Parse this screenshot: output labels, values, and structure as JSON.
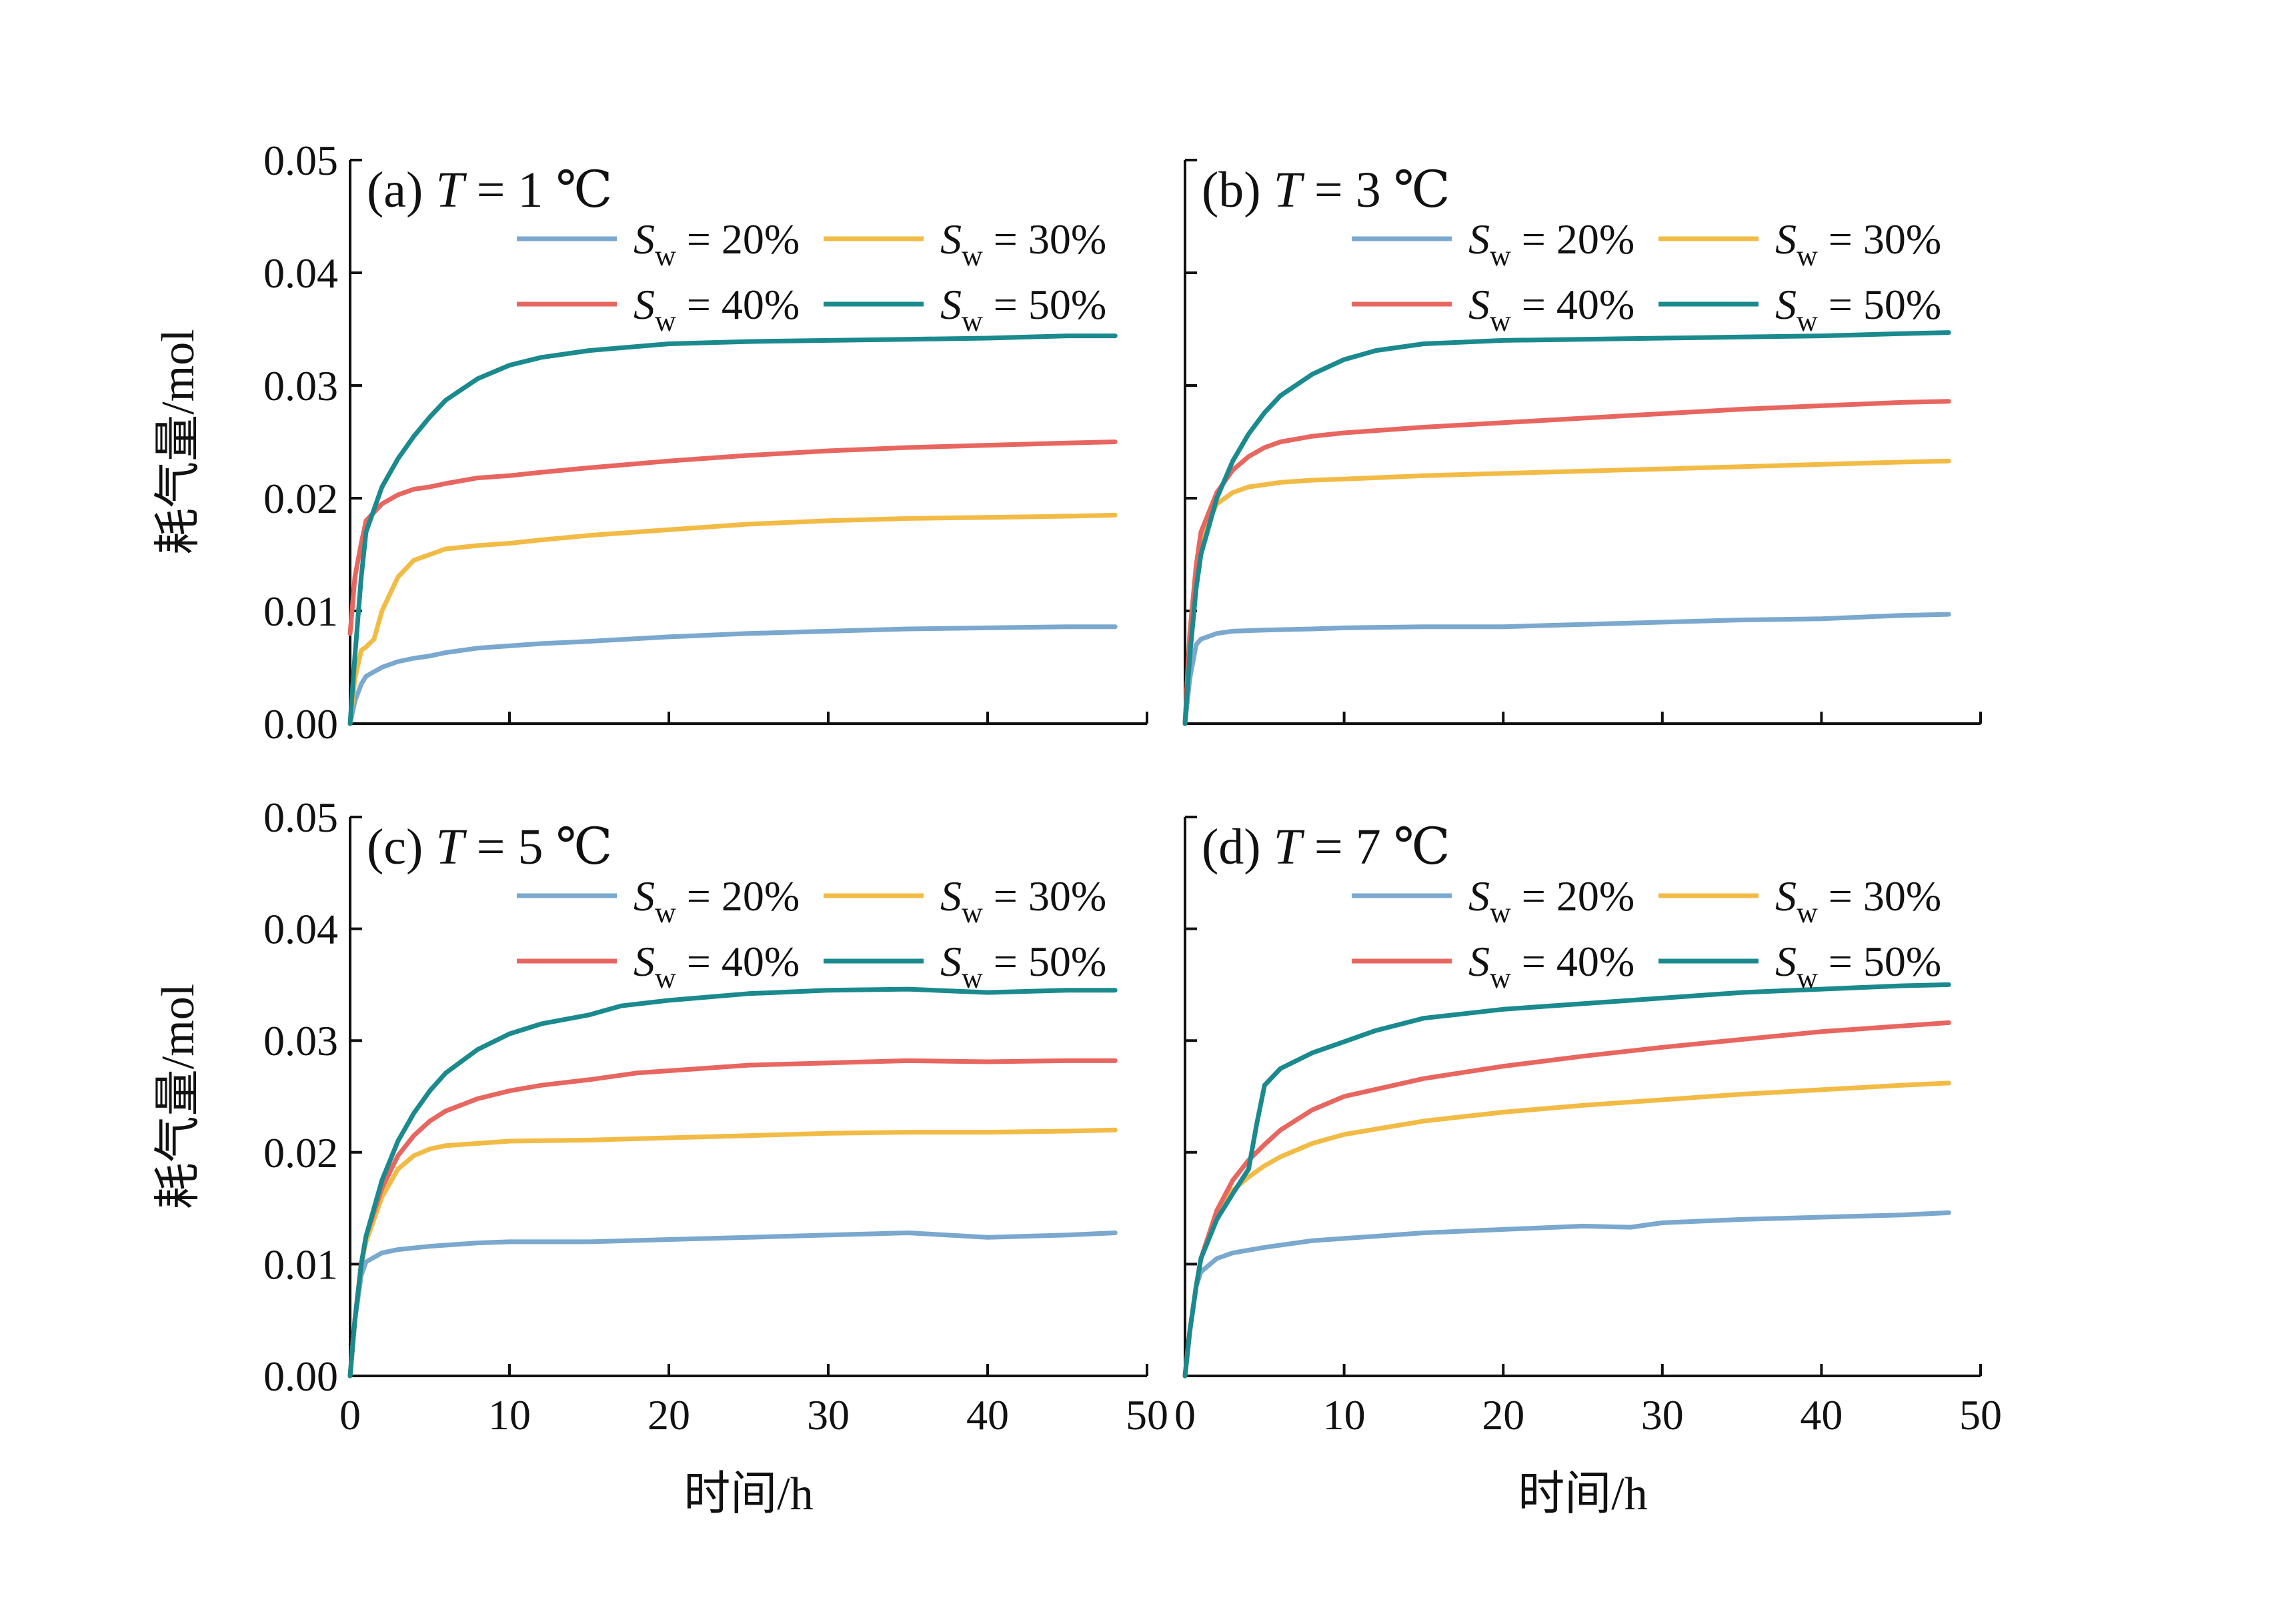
{
  "figure": {
    "ylabel": "耗气量/mol",
    "xlabel": "时间/h"
  },
  "chart_data": [
    {
      "type": "line",
      "panel": "(a)",
      "condition": "T = 1 ℃",
      "xlabel": "时间/h",
      "ylabel": "耗气量/mol",
      "xlim": [
        0,
        50
      ],
      "ylim": [
        0,
        0.05
      ],
      "xticks": [
        0,
        10,
        20,
        30,
        40,
        50
      ],
      "yticks": [
        0.0,
        0.01,
        0.02,
        0.03,
        0.04,
        0.05
      ],
      "legend": "top-right",
      "series": [
        {
          "name": "Sw = 20%",
          "color": "#7aa8ce",
          "x": [
            0,
            0.3,
            0.7,
            1,
            2,
            3,
            4,
            5,
            6,
            8,
            10,
            12,
            15,
            20,
            25,
            30,
            35,
            40,
            45,
            48
          ],
          "y": [
            0,
            0.002,
            0.0035,
            0.0042,
            0.005,
            0.0055,
            0.0058,
            0.006,
            0.0063,
            0.0067,
            0.0069,
            0.0071,
            0.0073,
            0.0077,
            0.008,
            0.0082,
            0.0084,
            0.0085,
            0.0086,
            0.0086
          ]
        },
        {
          "name": "Sw = 30%",
          "color": "#f2bb45",
          "x": [
            0,
            0.3,
            0.7,
            1,
            1.5,
            2,
            3,
            4,
            5,
            6,
            8,
            10,
            12,
            15,
            20,
            25,
            30,
            35,
            40,
            45,
            48
          ],
          "y": [
            0,
            0.004,
            0.0065,
            0.0068,
            0.0075,
            0.01,
            0.013,
            0.0145,
            0.015,
            0.0155,
            0.0158,
            0.016,
            0.0163,
            0.0167,
            0.0172,
            0.0177,
            0.018,
            0.0182,
            0.0183,
            0.0184,
            0.0185
          ]
        },
        {
          "name": "Sw = 40%",
          "color": "#e86660",
          "x": [
            0,
            0.3,
            0.7,
            1,
            2,
            3,
            4,
            5,
            6,
            8,
            10,
            12,
            15,
            20,
            25,
            30,
            35,
            40,
            45,
            48
          ],
          "y": [
            0.008,
            0.013,
            0.016,
            0.018,
            0.0195,
            0.0203,
            0.0208,
            0.021,
            0.0213,
            0.0218,
            0.022,
            0.0223,
            0.0227,
            0.0233,
            0.0238,
            0.0242,
            0.0245,
            0.0247,
            0.0249,
            0.025
          ]
        },
        {
          "name": "Sw = 50%",
          "color": "#1a8a8e",
          "x": [
            0,
            0.3,
            0.7,
            1,
            2,
            3,
            4,
            5,
            6,
            8,
            10,
            12,
            15,
            20,
            25,
            30,
            35,
            40,
            45,
            48
          ],
          "y": [
            0,
            0.006,
            0.013,
            0.017,
            0.021,
            0.0235,
            0.0255,
            0.0272,
            0.0287,
            0.0306,
            0.0318,
            0.0325,
            0.0331,
            0.0337,
            0.0339,
            0.034,
            0.0341,
            0.0342,
            0.0344,
            0.0344
          ]
        }
      ]
    },
    {
      "type": "line",
      "panel": "(b)",
      "condition": "T = 3 ℃",
      "xlabel": "时间/h",
      "ylabel": "耗气量/mol",
      "xlim": [
        0,
        50
      ],
      "ylim": [
        0,
        0.05
      ],
      "xticks": [
        0,
        10,
        20,
        30,
        40,
        50
      ],
      "yticks": [
        0.0,
        0.01,
        0.02,
        0.03,
        0.04,
        0.05
      ],
      "legend": "top-right",
      "series": [
        {
          "name": "Sw = 20%",
          "color": "#7aa8ce",
          "x": [
            0,
            0.3,
            0.7,
            1,
            2,
            3,
            5,
            8,
            10,
            15,
            20,
            25,
            30,
            35,
            40,
            45,
            48
          ],
          "y": [
            0,
            0.004,
            0.007,
            0.0075,
            0.008,
            0.0082,
            0.0083,
            0.0084,
            0.0085,
            0.0086,
            0.0086,
            0.0088,
            0.009,
            0.0092,
            0.0093,
            0.0096,
            0.0097
          ]
        },
        {
          "name": "Sw = 30%",
          "color": "#f2bb45",
          "x": [
            0,
            0.3,
            0.7,
            1,
            2,
            3,
            4,
            5,
            6,
            8,
            10,
            15,
            20,
            25,
            30,
            35,
            40,
            45,
            48
          ],
          "y": [
            0,
            0.008,
            0.014,
            0.0165,
            0.0195,
            0.0205,
            0.021,
            0.0212,
            0.0214,
            0.0216,
            0.0217,
            0.022,
            0.0222,
            0.0224,
            0.0226,
            0.0228,
            0.023,
            0.0232,
            0.0233
          ]
        },
        {
          "name": "Sw = 40%",
          "color": "#e86660",
          "x": [
            0,
            0.3,
            0.7,
            1,
            2,
            3,
            4,
            5,
            6,
            8,
            10,
            15,
            20,
            25,
            30,
            35,
            40,
            45,
            48
          ],
          "y": [
            0,
            0.008,
            0.014,
            0.017,
            0.0205,
            0.0225,
            0.0237,
            0.0245,
            0.025,
            0.0255,
            0.0258,
            0.0263,
            0.0267,
            0.0271,
            0.0275,
            0.0279,
            0.0282,
            0.0285,
            0.0286
          ]
        },
        {
          "name": "Sw = 50%",
          "color": "#1a8a8e",
          "x": [
            0,
            0.3,
            0.7,
            1,
            2,
            3,
            4,
            5,
            6,
            8,
            10,
            12,
            15,
            20,
            25,
            30,
            35,
            40,
            45,
            48
          ],
          "y": [
            0,
            0.006,
            0.012,
            0.015,
            0.02,
            0.0233,
            0.0257,
            0.0276,
            0.0291,
            0.031,
            0.0323,
            0.0331,
            0.0337,
            0.034,
            0.0341,
            0.0342,
            0.0343,
            0.0344,
            0.0346,
            0.0347
          ]
        }
      ]
    },
    {
      "type": "line",
      "panel": "(c)",
      "condition": "T = 5 ℃",
      "xlabel": "时间/h",
      "ylabel": "耗气量/mol",
      "xlim": [
        0,
        50
      ],
      "ylim": [
        0,
        0.05
      ],
      "xticks": [
        0,
        10,
        20,
        30,
        40,
        50
      ],
      "yticks": [
        0.0,
        0.01,
        0.02,
        0.03,
        0.04,
        0.05
      ],
      "legend": "top-right",
      "series": [
        {
          "name": "Sw = 20%",
          "color": "#7aa8ce",
          "x": [
            0,
            0.3,
            0.7,
            1,
            2,
            3,
            5,
            8,
            10,
            15,
            20,
            25,
            30,
            35,
            40,
            45,
            48
          ],
          "y": [
            0,
            0.005,
            0.009,
            0.0102,
            0.011,
            0.0113,
            0.0116,
            0.0119,
            0.012,
            0.012,
            0.0122,
            0.0124,
            0.0126,
            0.0128,
            0.0124,
            0.0126,
            0.0128
          ]
        },
        {
          "name": "Sw = 30%",
          "color": "#f2bb45",
          "x": [
            0,
            0.3,
            0.7,
            1,
            2,
            3,
            4,
            5,
            6,
            8,
            10,
            15,
            20,
            25,
            30,
            35,
            40,
            45,
            48
          ],
          "y": [
            0,
            0.005,
            0.01,
            0.012,
            0.016,
            0.0185,
            0.0197,
            0.0203,
            0.0206,
            0.0208,
            0.021,
            0.0211,
            0.0213,
            0.0215,
            0.0217,
            0.0218,
            0.0218,
            0.0219,
            0.022
          ]
        },
        {
          "name": "Sw = 40%",
          "color": "#e86660",
          "x": [
            0,
            0.3,
            0.7,
            1,
            2,
            3,
            4,
            5,
            6,
            8,
            10,
            12,
            15,
            18,
            20,
            25,
            30,
            35,
            40,
            45,
            48
          ],
          "y": [
            0,
            0.005,
            0.01,
            0.0125,
            0.0168,
            0.0197,
            0.0215,
            0.0228,
            0.0237,
            0.0248,
            0.0255,
            0.026,
            0.0265,
            0.0271,
            0.0273,
            0.0278,
            0.028,
            0.0282,
            0.0281,
            0.0282,
            0.0282
          ]
        },
        {
          "name": "Sw = 50%",
          "color": "#1a8a8e",
          "x": [
            0,
            0.3,
            0.7,
            1,
            2,
            3,
            4,
            5,
            6,
            8,
            10,
            12,
            15,
            17,
            20,
            25,
            30,
            35,
            40,
            45,
            48
          ],
          "y": [
            0,
            0.005,
            0.01,
            0.0125,
            0.0175,
            0.021,
            0.0235,
            0.0255,
            0.0271,
            0.0292,
            0.0306,
            0.0315,
            0.0323,
            0.0331,
            0.0336,
            0.0342,
            0.0345,
            0.0346,
            0.0343,
            0.0345,
            0.0345
          ]
        }
      ]
    },
    {
      "type": "line",
      "panel": "(d)",
      "condition": "T = 7 ℃",
      "xlabel": "时间/h",
      "ylabel": "耗气量/mol",
      "xlim": [
        0,
        50
      ],
      "ylim": [
        0,
        0.05
      ],
      "xticks": [
        0,
        10,
        20,
        30,
        40,
        50
      ],
      "yticks": [
        0.0,
        0.01,
        0.02,
        0.03,
        0.04,
        0.05
      ],
      "legend": "top-right",
      "series": [
        {
          "name": "Sw = 20%",
          "color": "#7aa8ce",
          "x": [
            0,
            0.3,
            0.7,
            1,
            2,
            3,
            5,
            8,
            10,
            15,
            20,
            25,
            28,
            30,
            35,
            40,
            45,
            48
          ],
          "y": [
            0,
            0.004,
            0.008,
            0.0093,
            0.0105,
            0.011,
            0.0115,
            0.0121,
            0.0123,
            0.0128,
            0.0131,
            0.0134,
            0.0133,
            0.0137,
            0.014,
            0.0142,
            0.0144,
            0.0146
          ]
        },
        {
          "name": "Sw = 30%",
          "color": "#f2bb45",
          "x": [
            0,
            0.3,
            0.7,
            1,
            2,
            3,
            4,
            5,
            6,
            8,
            10,
            15,
            20,
            25,
            30,
            35,
            40,
            45,
            48
          ],
          "y": [
            0,
            0.004,
            0.008,
            0.0105,
            0.0145,
            0.0166,
            0.0178,
            0.0188,
            0.0196,
            0.0208,
            0.0216,
            0.0228,
            0.0236,
            0.0242,
            0.0247,
            0.0252,
            0.0256,
            0.026,
            0.0262
          ]
        },
        {
          "name": "Sw = 40%",
          "color": "#e86660",
          "x": [
            0,
            0.3,
            0.7,
            1,
            2,
            3,
            4,
            5,
            6,
            8,
            10,
            15,
            20,
            25,
            30,
            35,
            40,
            45,
            48
          ],
          "y": [
            0,
            0.004,
            0.008,
            0.0105,
            0.0148,
            0.0175,
            0.0193,
            0.0207,
            0.022,
            0.0238,
            0.025,
            0.0266,
            0.0277,
            0.0286,
            0.0294,
            0.0301,
            0.0308,
            0.0313,
            0.0316
          ]
        },
        {
          "name": "Sw = 50%",
          "color": "#1a8a8e",
          "x": [
            0,
            0.3,
            0.7,
            1,
            2,
            3,
            4,
            4.5,
            5,
            6,
            8,
            10,
            12,
            15,
            20,
            25,
            30,
            35,
            40,
            45,
            48
          ],
          "y": [
            0,
            0.004,
            0.008,
            0.0105,
            0.014,
            0.0163,
            0.0185,
            0.0225,
            0.026,
            0.0275,
            0.0289,
            0.0299,
            0.0309,
            0.032,
            0.0328,
            0.0333,
            0.0338,
            0.0343,
            0.0346,
            0.0349,
            0.035
          ]
        }
      ]
    }
  ]
}
